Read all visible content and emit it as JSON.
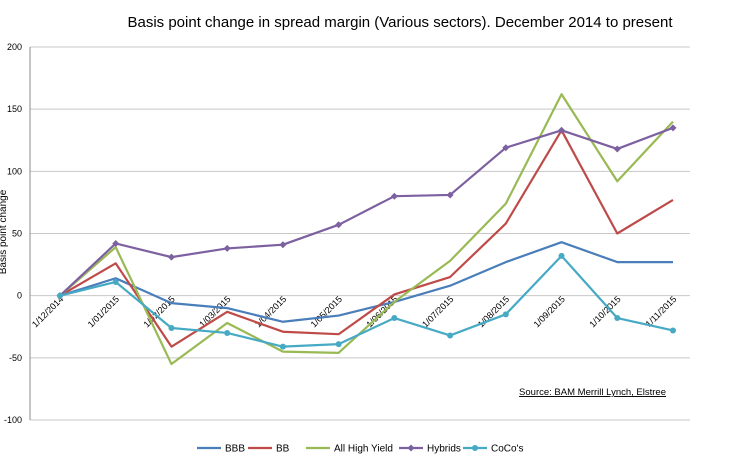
{
  "chart_data": {
    "type": "line",
    "title": "Basis point change in spread margin (Various sectors). December 2014 to present",
    "xlabel": "",
    "ylabel": "Basis point change",
    "ylim": [
      -100,
      200
    ],
    "yticks": [
      -100,
      -50,
      0,
      50,
      100,
      150,
      200
    ],
    "grid": true,
    "legend_position": "bottom",
    "categories": [
      "1/12/2014",
      "1/01/2015",
      "1/02/2015",
      "1/03/2015",
      "1/04/2015",
      "1/05/2015",
      "1/06/2015",
      "1/07/2015",
      "1/08/2015",
      "1/09/2015",
      "1/10/2015",
      "1/11/2015"
    ],
    "series": [
      {
        "name": "BBB",
        "color": "#4a7ebb",
        "marker": "none",
        "values": [
          0,
          14,
          -6,
          -10,
          -21,
          -16,
          -5,
          8,
          27,
          43,
          27,
          27
        ]
      },
      {
        "name": "BB",
        "color": "#be4b48",
        "marker": "none",
        "values": [
          0,
          26,
          -41,
          -13,
          -29,
          -31,
          1,
          15,
          58,
          133,
          50,
          77
        ]
      },
      {
        "name": "All High Yield",
        "color": "#98b954",
        "marker": "none",
        "values": [
          0,
          39,
          -55,
          -22,
          -45,
          -46,
          -5,
          28,
          74,
          162,
          92,
          140
        ]
      },
      {
        "name": "Hybrids",
        "color": "#7d60a0",
        "marker": "diamond",
        "values": [
          0,
          42,
          31,
          38,
          41,
          57,
          80,
          81,
          119,
          133,
          118,
          135
        ]
      },
      {
        "name": "CoCo's",
        "color": "#46aac5",
        "marker": "circle",
        "values": [
          0,
          11,
          -26,
          -30,
          -41,
          -39,
          -18,
          -32,
          -15,
          32,
          -18,
          -28
        ]
      }
    ],
    "annotation": "Source: BAM Merrill Lynch, Elstree"
  }
}
